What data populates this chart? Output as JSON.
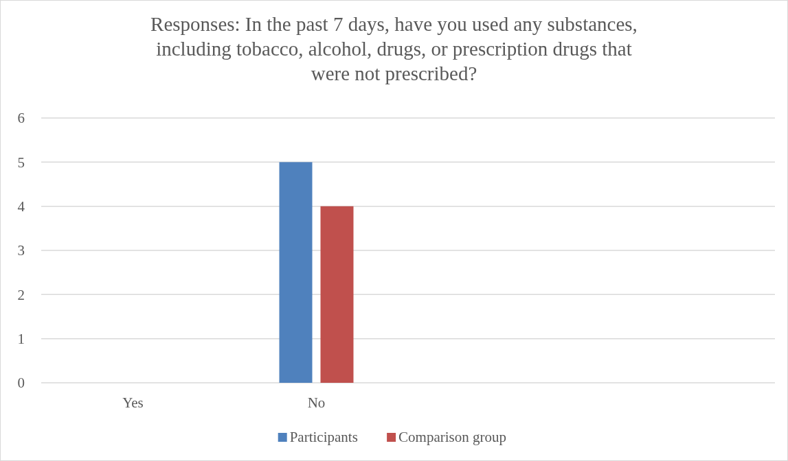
{
  "chart_data": {
    "type": "bar",
    "title": "Responses: In the past 7 days, have you used any substances, including tobacco, alcohol, drugs, or prescription drugs that were not prescribed?",
    "categories": [
      "Yes",
      "No",
      null,
      null
    ],
    "series": [
      {
        "name": "Participants",
        "color": "#4f81bd",
        "values": [
          0,
          5,
          null,
          null
        ]
      },
      {
        "name": "Comparison group",
        "color": "#c0504d",
        "values": [
          0,
          4,
          null,
          null
        ]
      }
    ],
    "ylim": [
      0,
      6
    ],
    "yticks": [
      0,
      1,
      2,
      3,
      4,
      5,
      6
    ],
    "grid": "y",
    "legend": "bottom"
  }
}
